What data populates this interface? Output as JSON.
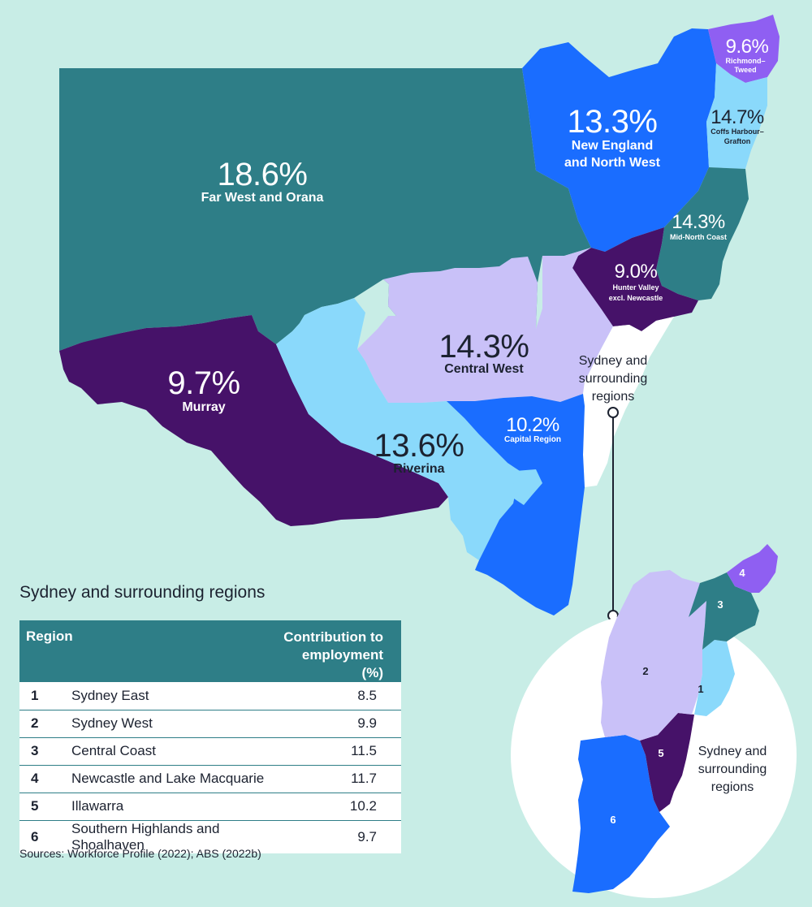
{
  "colors": {
    "background": "#c8ede6",
    "teal": "#2e7e87",
    "blue": "#1a6dff",
    "light_blue": "#8ad9fb",
    "lavender": "#c9c1f8",
    "purple": "#461269",
    "violet": "#8f5ff2",
    "white": "#ffffff"
  },
  "map": {
    "regions": [
      {
        "id": "far-west-orana",
        "pct": "18.6%",
        "name": "Far West and Orana"
      },
      {
        "id": "new-england",
        "pct": "13.3%",
        "name_lines": [
          "New England",
          "and North West"
        ]
      },
      {
        "id": "richmond-tweed",
        "pct": "9.6%",
        "name_lines": [
          "Richmond–",
          "Tweed"
        ]
      },
      {
        "id": "coffs-harbour",
        "pct": "14.7%",
        "name_lines": [
          "Coffs Harbour–",
          "Grafton"
        ]
      },
      {
        "id": "mid-north-coast",
        "pct": "14.3%",
        "name": "Mid-North Coast"
      },
      {
        "id": "hunter-valley",
        "pct": "9.0%",
        "name_lines": [
          "Hunter Valley",
          "excl. Newcastle"
        ]
      },
      {
        "id": "central-west",
        "pct": "14.3%",
        "name": "Central West"
      },
      {
        "id": "murray",
        "pct": "9.7%",
        "name": "Murray"
      },
      {
        "id": "riverina",
        "pct": "13.6%",
        "name": "Riverina"
      },
      {
        "id": "capital",
        "pct": "10.2%",
        "name": "Capital Region"
      }
    ],
    "sydney_callout_lines": [
      "Sydney and",
      "surrounding",
      "regions"
    ]
  },
  "inset": {
    "caption_lines": [
      "Sydney and",
      "surrounding",
      "regions"
    ],
    "labels": [
      "1",
      "2",
      "3",
      "4",
      "5",
      "6"
    ]
  },
  "table": {
    "title": "Sydney and surrounding regions",
    "header_region": "Region",
    "header_value_lines": [
      "Contribution to",
      "employment (%)"
    ],
    "rows": [
      {
        "num": "1",
        "name": "Sydney East",
        "value": "8.5"
      },
      {
        "num": "2",
        "name": "Sydney West",
        "value": "9.9"
      },
      {
        "num": "3",
        "name": "Central Coast",
        "value": "11.5"
      },
      {
        "num": "4",
        "name": "Newcastle and Lake Macquarie",
        "value": "11.7"
      },
      {
        "num": "5",
        "name": "Illawarra",
        "value": "10.2"
      },
      {
        "num": "6",
        "name": "Southern Highlands and Shoalhaven",
        "value": "9.7"
      }
    ]
  },
  "sources": "Sources: Workforce Profile (2022); ABS (2022b)"
}
